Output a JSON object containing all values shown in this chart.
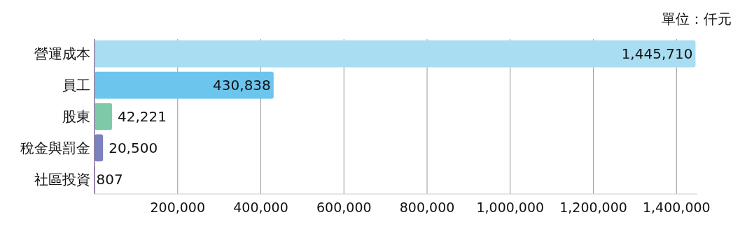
{
  "chart_data": {
    "type": "bar",
    "orientation": "horizontal",
    "categories": [
      "營運成本",
      "員工",
      "股東",
      "稅金與罰金",
      "社區投資"
    ],
    "values": [
      1445710,
      430838,
      42221,
      20500,
      807
    ],
    "value_labels": [
      "1,445,710",
      "430,838",
      "42,221",
      "20,500",
      "807"
    ],
    "colors": [
      "#a8ddf2",
      "#6cc5ec",
      "#7ecaa8",
      "#7b80bf",
      "#8a6fb0"
    ],
    "xlim": [
      0,
      1450000
    ],
    "xticks": [
      {
        "value": 0,
        "label": null
      },
      {
        "value": 200000,
        "label": "200,000"
      },
      {
        "value": 400000,
        "label": "400,000"
      },
      {
        "value": 600000,
        "label": "600,000"
      },
      {
        "value": 800000,
        "label": "800,000"
      },
      {
        "value": 1000000,
        "label": "1,000,000"
      },
      {
        "value": 1200000,
        "label": "1,200,000"
      },
      {
        "value": 1400000,
        "label": "1,400,000"
      }
    ],
    "grid": "x",
    "annotations": [
      "單位：仟元"
    ]
  }
}
